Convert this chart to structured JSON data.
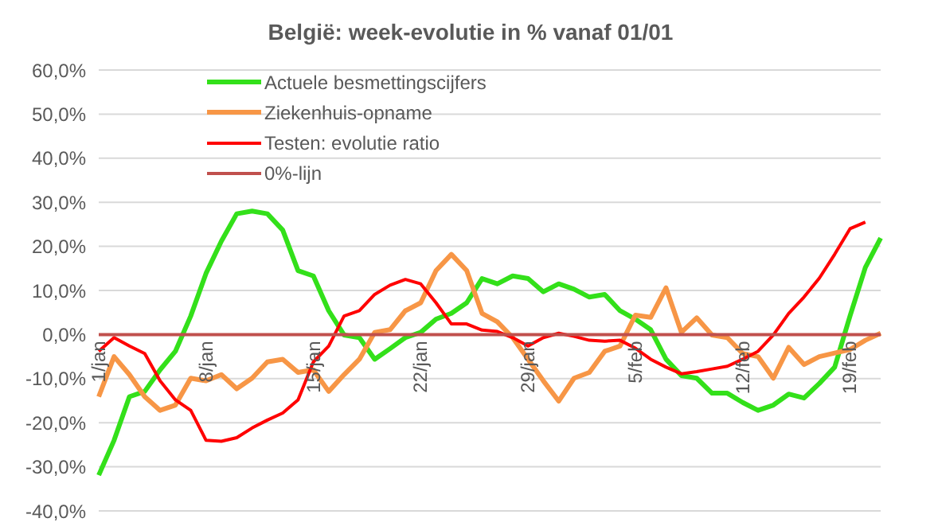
{
  "chart_data": {
    "type": "line",
    "title": "België: week-evolutie in %  vanaf 01/01",
    "categories": [
      "1/jan",
      null,
      null,
      null,
      null,
      null,
      null,
      "8/jan",
      null,
      null,
      null,
      null,
      null,
      null,
      "15/jan",
      null,
      null,
      null,
      null,
      null,
      null,
      "22/jan",
      null,
      null,
      null,
      null,
      null,
      null,
      "29/jan",
      null,
      null,
      null,
      null,
      null,
      null,
      "5/feb",
      null,
      null,
      null,
      null,
      null,
      null,
      "12/feb",
      null,
      null,
      null,
      null,
      null,
      null,
      "19/feb",
      null,
      null
    ],
    "series": [
      {
        "name": "Actuele besmettingscijfers",
        "color": "#33e01a",
        "values": [
          -31.9,
          -24,
          -14.1,
          -12.9,
          -8,
          -3.8,
          4.2,
          13.9,
          21.2,
          27.4,
          28,
          27.4,
          23.7,
          14.5,
          13.3,
          5.4,
          -0.1,
          -0.7,
          -5.6,
          -3.2,
          -0.7,
          0.5,
          3.5,
          4.8,
          7.2,
          12.7,
          11.5,
          13.3,
          12.7,
          9.7,
          11.5,
          10.3,
          8.5,
          9.1,
          5.4,
          3.5,
          1.1,
          -5.6,
          -9.3,
          -9.9,
          -13.3,
          -13.3,
          -15.4,
          -17.2,
          -16,
          -13.5,
          -14.4,
          -11.1,
          -7.4,
          4.2,
          15.2,
          21.9
        ]
      },
      {
        "name": "Ziekenhuis-opname",
        "color": "#f79646",
        "values": [
          -14.1,
          -5,
          -9.1,
          -14.1,
          -17.2,
          -16,
          -9.9,
          -10.5,
          -9.1,
          -12.3,
          -9.9,
          -6.2,
          -5.6,
          -8.6,
          -8,
          -12.9,
          -9.1,
          -5.6,
          0.5,
          1.1,
          5.4,
          7.2,
          14.5,
          18.2,
          14.5,
          4.8,
          2.9,
          -0.7,
          -5.6,
          -10.5,
          -15.1,
          -9.9,
          -8.6,
          -3.8,
          -2.6,
          4.4,
          3.9,
          10.6,
          0.5,
          3.8,
          -0.1,
          -0.7,
          -4.3,
          -5,
          -9.9,
          -2.9,
          -6.8,
          -5,
          -4.2,
          -3.4,
          -1.3,
          0.3
        ]
      },
      {
        "name": "Testen: evolutie ratio",
        "color": "#ff0000",
        "values": [
          -3.8,
          -0.7,
          -2.6,
          -4.3,
          -10.5,
          -14.8,
          -17.2,
          -24,
          -24.2,
          -23.4,
          -21.2,
          -19.4,
          -17.8,
          -14.8,
          -6.2,
          -2.6,
          4.2,
          5.4,
          9.1,
          11.2,
          12.5,
          11.5,
          7.2,
          2.4,
          2.4,
          1,
          0.7,
          -0.7,
          -2.6,
          -0.7,
          0.3,
          -0.4,
          -1.3,
          -1.5,
          -1.3,
          -3.1,
          -5.6,
          -7.4,
          -8.9,
          -8.4,
          -7.8,
          -7.2,
          -5.6,
          -3.8,
          -0.1,
          4.8,
          8.5,
          12.8,
          18.2,
          24,
          25.5,
          null
        ]
      },
      {
        "name": "0%-lijn",
        "color": "#c0504d",
        "values": [
          0,
          0,
          0,
          0,
          0,
          0,
          0,
          0,
          0,
          0,
          0,
          0,
          0,
          0,
          0,
          0,
          0,
          0,
          0,
          0,
          0,
          0,
          0,
          0,
          0,
          0,
          0,
          0,
          0,
          0,
          0,
          0,
          0,
          0,
          0,
          0,
          0,
          0,
          0,
          0,
          0,
          0,
          0,
          0,
          0,
          0,
          0,
          0,
          0,
          0,
          0,
          0
        ]
      }
    ],
    "ylim": [
      -40,
      60
    ],
    "yticks": [
      {
        "value": -40,
        "label": "-40,0%"
      },
      {
        "value": -30,
        "label": "-30,0%"
      },
      {
        "value": -20,
        "label": "-20,0%"
      },
      {
        "value": -10,
        "label": "-10,0%"
      },
      {
        "value": 0,
        "label": "0,0%"
      },
      {
        "value": 10,
        "label": "10,0%"
      },
      {
        "value": 20,
        "label": "20,0%"
      },
      {
        "value": 30,
        "label": "30,0%"
      },
      {
        "value": 40,
        "label": "40,0%"
      },
      {
        "value": 50,
        "label": "50,0%"
      },
      {
        "value": 60,
        "label": "60,0%"
      }
    ],
    "grid": "y",
    "legend": "top left",
    "marker": "none",
    "line_style": "solid"
  }
}
